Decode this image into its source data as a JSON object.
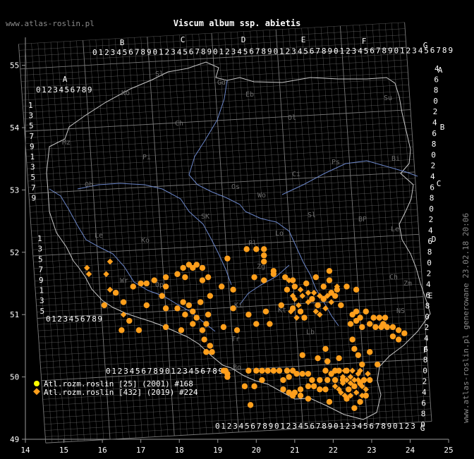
{
  "site_label": "www.atlas-roslin.pl",
  "title": "Viscum album ssp. abietis",
  "generated_note": "www.atlas-roslin.pl generowane 23.02.18 20:06",
  "colors": {
    "background": "#000000",
    "grid": "#7a7a7a",
    "border": "#c8c8c8",
    "river": "#6b86c9",
    "series_old": "#ffff00",
    "series_new": "#ff9f1c"
  },
  "x_axis": {
    "labels": [
      "14",
      "15",
      "16",
      "17",
      "18",
      "19",
      "20",
      "21",
      "22",
      "23",
      "24",
      "25"
    ]
  },
  "y_axis": {
    "labels": [
      "55",
      "54",
      "53",
      "52",
      "51",
      "50",
      "49"
    ]
  },
  "grid_letters": {
    "top": [
      "A",
      "B",
      "C",
      "D",
      "E",
      "F",
      "G"
    ],
    "right": [
      "A",
      "B",
      "C",
      "D",
      "E",
      "F",
      "G"
    ]
  },
  "grid_digits": {
    "top_row": "0123456789",
    "left_col": [
      "1",
      "3",
      "5",
      "7",
      "9"
    ],
    "right_col": [
      "4",
      "6",
      "8",
      "0",
      "2"
    ]
  },
  "region_labels": [
    "Sl",
    "Ko",
    "Gd",
    "Eb",
    "Su",
    "Ch",
    "Ol",
    "Pi",
    "Bi",
    "Ci",
    "Mz",
    "Ps",
    "Ob",
    "Os",
    "Wo",
    "Sl",
    "BP",
    "Le",
    "Ko",
    "SK",
    "Lo",
    "Pl",
    "Zg",
    "Le",
    "Wr",
    "Op",
    "Ki",
    "Kt",
    "Tr",
    "Lb",
    "Ch",
    "Zm",
    "NS",
    "Bo"
  ],
  "legend": [
    {
      "marker": "circle",
      "color": "#ffff00",
      "label": "Atl.rozm.roslin [25] (2001) #168"
    },
    {
      "marker": "diamond",
      "color": "#ff9f1c",
      "label": "Atl.rozm.roslin [432] (2019) #224"
    }
  ],
  "records_circle": [
    [
      19.75,
      52.05
    ],
    [
      20.0,
      52.05
    ],
    [
      20.2,
      52.05
    ],
    [
      20.2,
      51.95
    ],
    [
      20.2,
      51.85
    ],
    [
      19.25,
      51.9
    ],
    [
      18.25,
      51.8
    ],
    [
      18.35,
      51.75
    ],
    [
      18.1,
      51.75
    ],
    [
      18.45,
      51.8
    ],
    [
      18.6,
      51.75
    ],
    [
      17.95,
      51.65
    ],
    [
      18.15,
      51.6
    ],
    [
      18.75,
      51.6
    ],
    [
      18.6,
      51.55
    ],
    [
      17.35,
      51.55
    ],
    [
      17.65,
      51.6
    ],
    [
      17.0,
      51.5
    ],
    [
      17.15,
      51.5
    ],
    [
      16.8,
      51.45
    ],
    [
      17.65,
      51.45
    ],
    [
      19.1,
      51.45
    ],
    [
      19.4,
      51.4
    ],
    [
      20.45,
      51.7
    ],
    [
      20.45,
      51.65
    ],
    [
      19.95,
      51.6
    ],
    [
      20.2,
      51.55
    ],
    [
      20.75,
      51.6
    ],
    [
      16.35,
      51.35
    ],
    [
      16.55,
      51.2
    ],
    [
      16.05,
      51.15
    ],
    [
      17.15,
      51.15
    ],
    [
      18.1,
      51.2
    ],
    [
      18.25,
      51.15
    ],
    [
      18.55,
      51.2
    ],
    [
      18.8,
      51.3
    ],
    [
      17.55,
      51.3
    ],
    [
      17.65,
      51.1
    ],
    [
      17.95,
      51.1
    ],
    [
      18.35,
      51.05
    ],
    [
      18.75,
      51.0
    ],
    [
      18.45,
      50.95
    ],
    [
      18.15,
      51.0
    ],
    [
      18.7,
      50.85
    ],
    [
      19.4,
      51.1
    ],
    [
      19.8,
      51.0
    ],
    [
      20.0,
      50.85
    ],
    [
      20.35,
      50.85
    ],
    [
      20.25,
      51.05
    ],
    [
      16.7,
      50.9
    ],
    [
      16.5,
      50.75
    ],
    [
      16.95,
      50.75
    ],
    [
      17.65,
      50.8
    ],
    [
      18.05,
      50.75
    ],
    [
      18.35,
      50.85
    ],
    [
      18.6,
      50.75
    ],
    [
      19.15,
      50.8
    ],
    [
      19.5,
      50.75
    ],
    [
      18.65,
      50.6
    ],
    [
      18.8,
      50.5
    ],
    [
      18.7,
      50.4
    ],
    [
      18.85,
      50.4
    ],
    [
      19.2,
      50.1
    ],
    [
      19.25,
      50.0
    ],
    [
      19.8,
      50.1
    ],
    [
      20.0,
      50.1
    ],
    [
      20.15,
      50.1
    ],
    [
      20.3,
      50.1
    ],
    [
      20.45,
      50.1
    ],
    [
      20.6,
      50.1
    ],
    [
      20.8,
      50.1
    ],
    [
      20.95,
      50.1
    ],
    [
      21.05,
      50.05
    ],
    [
      21.2,
      50.05
    ],
    [
      21.35,
      50.05
    ],
    [
      19.7,
      49.85
    ],
    [
      19.95,
      49.85
    ],
    [
      20.15,
      49.95
    ],
    [
      20.85,
      50.0
    ],
    [
      20.7,
      49.8
    ],
    [
      20.85,
      49.75
    ],
    [
      21.0,
      49.75
    ],
    [
      21.15,
      49.8
    ],
    [
      21.35,
      49.85
    ],
    [
      21.5,
      49.85
    ],
    [
      21.65,
      49.8
    ],
    [
      21.8,
      49.8
    ],
    [
      21.35,
      49.65
    ],
    [
      21.15,
      49.7
    ],
    [
      20.95,
      49.7
    ],
    [
      20.7,
      49.95
    ],
    [
      21.45,
      49.95
    ],
    [
      21.65,
      49.95
    ],
    [
      21.85,
      49.95
    ],
    [
      19.85,
      49.55
    ],
    [
      22.05,
      49.95
    ],
    [
      22.25,
      49.95
    ],
    [
      22.05,
      50.1
    ],
    [
      21.8,
      50.1
    ],
    [
      21.95,
      50.05
    ],
    [
      22.15,
      50.1
    ],
    [
      22.35,
      50.1
    ],
    [
      21.85,
      50.25
    ],
    [
      21.2,
      50.35
    ],
    [
      21.6,
      50.3
    ],
    [
      21.8,
      50.45
    ],
    [
      22.15,
      50.3
    ],
    [
      22.55,
      50.45
    ],
    [
      22.65,
      50.35
    ],
    [
      22.75,
      50.2
    ],
    [
      22.5,
      50.6
    ],
    [
      22.95,
      50.4
    ],
    [
      23.15,
      50.2
    ],
    [
      22.85,
      49.7
    ],
    [
      22.7,
      49.6
    ],
    [
      22.55,
      49.5
    ],
    [
      21.9,
      49.6
    ],
    [
      22.35,
      49.65
    ],
    [
      22.4,
      49.8
    ],
    [
      22.55,
      49.85
    ],
    [
      22.7,
      49.9
    ],
    [
      22.8,
      49.95
    ],
    [
      22.95,
      49.95
    ],
    [
      22.45,
      50.85
    ],
    [
      22.6,
      50.9
    ],
    [
      22.75,
      50.8
    ],
    [
      22.5,
      51.0
    ],
    [
      22.6,
      51.05
    ],
    [
      22.95,
      50.85
    ],
    [
      23.1,
      50.8
    ],
    [
      23.25,
      50.8
    ],
    [
      23.4,
      50.8
    ],
    [
      23.55,
      50.8
    ],
    [
      23.7,
      50.75
    ],
    [
      23.85,
      50.7
    ],
    [
      23.7,
      50.6
    ],
    [
      23.55,
      50.65
    ],
    [
      23.3,
      50.85
    ],
    [
      23.05,
      50.95
    ],
    [
      22.85,
      51.05
    ],
    [
      22.7,
      50.95
    ],
    [
      23.2,
      50.95
    ],
    [
      23.35,
      50.95
    ],
    [
      21.45,
      51.25
    ],
    [
      21.6,
      51.15
    ],
    [
      21.75,
      51.25
    ],
    [
      21.95,
      51.35
    ],
    [
      22.1,
      51.4
    ],
    [
      22.35,
      51.45
    ],
    [
      22.6,
      51.4
    ],
    [
      21.9,
      51.55
    ],
    [
      21.75,
      51.45
    ],
    [
      21.55,
      51.6
    ],
    [
      21.9,
      51.7
    ],
    [
      21.3,
      51.5
    ],
    [
      21.0,
      51.45
    ],
    [
      20.95,
      51.55
    ],
    [
      20.8,
      51.4
    ],
    [
      20.65,
      51.15
    ],
    [
      20.95,
      51.1
    ],
    [
      21.15,
      51.05
    ],
    [
      22.2,
      51.15
    ],
    [
      22.05,
      51.3
    ],
    [
      21.25,
      50.95
    ],
    [
      19.15,
      50.1
    ],
    [
      19.25,
      50.05
    ]
  ],
  "records_diamond": [
    [
      15.6,
      51.75
    ],
    [
      15.65,
      51.65
    ],
    [
      16.2,
      51.85
    ],
    [
      16.1,
      51.65
    ],
    [
      16.2,
      51.4
    ],
    [
      16.55,
      51.0
    ],
    [
      20.95,
      51.3
    ],
    [
      21.0,
      51.25
    ],
    [
      21.1,
      51.15
    ],
    [
      21.2,
      51.3
    ],
    [
      21.15,
      51.4
    ],
    [
      21.35,
      51.35
    ],
    [
      21.35,
      51.2
    ],
    [
      21.5,
      51.35
    ],
    [
      21.55,
      51.05
    ],
    [
      21.65,
      51.0
    ],
    [
      21.8,
      51.1
    ],
    [
      21.85,
      51.3
    ],
    [
      21.65,
      51.3
    ],
    [
      20.85,
      51.55
    ],
    [
      20.9,
      51.05
    ],
    [
      21.05,
      50.95
    ],
    [
      22.1,
      51.45
    ],
    [
      21.95,
      51.2
    ],
    [
      22.05,
      49.85
    ],
    [
      22.15,
      49.8
    ],
    [
      22.25,
      49.9
    ],
    [
      22.35,
      49.95
    ],
    [
      22.45,
      49.9
    ],
    [
      22.55,
      49.95
    ],
    [
      22.65,
      49.95
    ],
    [
      22.75,
      49.85
    ],
    [
      22.85,
      49.8
    ],
    [
      22.25,
      50.0
    ],
    [
      22.45,
      50.0
    ],
    [
      22.65,
      50.05
    ],
    [
      22.3,
      50.1
    ],
    [
      22.5,
      50.1
    ],
    [
      22.7,
      50.1
    ],
    [
      22.9,
      50.05
    ],
    [
      22.2,
      49.75
    ],
    [
      22.3,
      49.7
    ],
    [
      22.45,
      49.7
    ],
    [
      22.6,
      49.75
    ],
    [
      22.75,
      49.7
    ]
  ]
}
